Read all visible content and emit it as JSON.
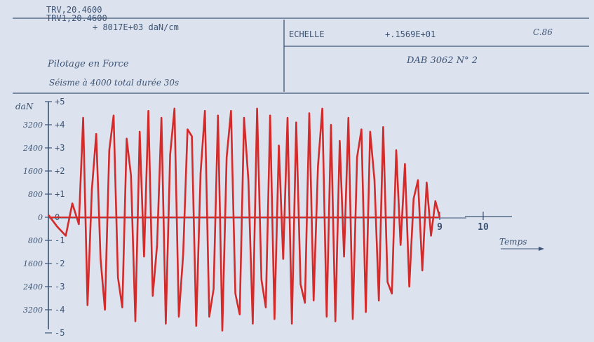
{
  "header": {
    "left_line1": "TRV,20.4600",
    "left_line2": "TRV1,20.4600",
    "left_line3": "+ 8017E+03 daN/cm",
    "note1": "Pilotage en Force",
    "note2": "Séisme à 4000 total durée 30s",
    "scale_label": "ECHELLE",
    "scale_value": "+.1569E+01",
    "ref": "C.86",
    "dab": "DAB 3062  N° 2"
  },
  "chart_data": {
    "type": "line",
    "unit_label": "daN",
    "left_ticks": [
      "3200",
      "2400",
      "1600",
      "800",
      "0",
      "800",
      "1600",
      "2400",
      "3200"
    ],
    "right_ticks": [
      "+5",
      "+4",
      "+3",
      "+2",
      "+1",
      "0",
      "-1",
      "-2",
      "-3",
      "-4",
      "-5"
    ],
    "right_tick_values": [
      5,
      4,
      3,
      2,
      1,
      0,
      -1,
      -2,
      -3,
      -4,
      -5
    ],
    "ylim": [
      -5,
      5
    ],
    "xlim": [
      0,
      10.5
    ],
    "x_ticks": [
      "9",
      "10"
    ],
    "x_tick_values": [
      9,
      10
    ],
    "xlabel": "Temps",
    "series": [
      {
        "color": "#d42a2a",
        "x": [
          0.0,
          0.2,
          0.4,
          0.55,
          0.7,
          0.8,
          0.9,
          1.0,
          1.1,
          1.2,
          1.3,
          1.4,
          1.5,
          1.6,
          1.7,
          1.8,
          1.9,
          2.0,
          2.1,
          2.2,
          2.3,
          2.4,
          2.5,
          2.6,
          2.7,
          2.8,
          2.9,
          3.0,
          3.1,
          3.2,
          3.3,
          3.4,
          3.5,
          3.6,
          3.7,
          3.8,
          3.9,
          4.0,
          4.1,
          4.2,
          4.3,
          4.4,
          4.5,
          4.6,
          4.7,
          4.8,
          4.9,
          5.0,
          5.1,
          5.2,
          5.3,
          5.4,
          5.5,
          5.6,
          5.7,
          5.8,
          5.9,
          6.0,
          6.1,
          6.2,
          6.3,
          6.4,
          6.5,
          6.6,
          6.7,
          6.8,
          6.9,
          7.0,
          7.1,
          7.2,
          7.3,
          7.4,
          7.5,
          7.6,
          7.7,
          7.8,
          7.9,
          8.0,
          8.1,
          8.2,
          8.3,
          8.4,
          8.5,
          8.6,
          8.7,
          8.8,
          8.9,
          9.0
        ],
        "values": [
          0.1,
          -0.4,
          -0.8,
          0.6,
          -0.3,
          4.3,
          -3.8,
          1.2,
          3.6,
          -1.8,
          -4.0,
          2.9,
          4.4,
          -2.6,
          -3.9,
          3.4,
          1.8,
          -4.5,
          3.7,
          -1.7,
          4.6,
          -3.4,
          -1.2,
          4.3,
          -4.6,
          2.7,
          4.7,
          -4.3,
          -1.6,
          3.8,
          3.5,
          -4.7,
          1.9,
          4.6,
          -4.3,
          -3.1,
          4.4,
          -4.9,
          2.6,
          4.6,
          -3.3,
          -4.2,
          4.3,
          1.6,
          -4.6,
          4.7,
          -2.7,
          -3.9,
          4.4,
          -4.4,
          3.1,
          -1.8,
          4.3,
          -4.6,
          4.1,
          -2.9,
          -3.7,
          4.5,
          -3.6,
          2.2,
          4.7,
          -4.3,
          4.0,
          -4.5,
          3.3,
          -1.7,
          4.3,
          -4.4,
          2.6,
          3.8,
          -4.1,
          3.7,
          1.6,
          -3.6,
          3.9,
          -2.8,
          -3.3,
          2.9,
          -1.2,
          2.3,
          -3.0,
          0.8,
          1.6,
          -2.3,
          1.5,
          -0.8,
          0.7,
          0.0
        ]
      }
    ],
    "grid": false,
    "legend": "none"
  }
}
